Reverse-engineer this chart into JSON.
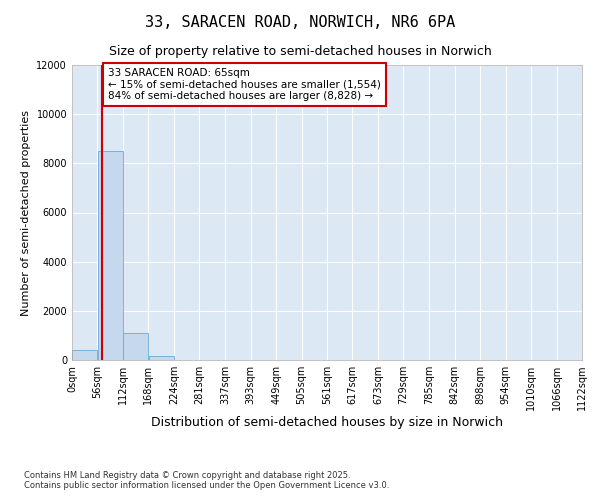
{
  "title": "33, SARACEN ROAD, NORWICH, NR6 6PA",
  "subtitle": "Size of property relative to semi-detached houses in Norwich",
  "xlabel": "Distribution of semi-detached houses by size in Norwich",
  "ylabel": "Number of semi-detached properties",
  "property_size": 65,
  "bin_width": 56,
  "bin_starts": [
    0,
    56,
    112,
    168,
    224,
    280,
    337,
    393,
    449,
    505,
    561,
    617,
    673,
    729,
    785,
    842,
    898,
    954,
    1010,
    1066
  ],
  "bin_labels": [
    "0sqm",
    "56sqm",
    "112sqm",
    "168sqm",
    "224sqm",
    "281sqm",
    "337sqm",
    "393sqm",
    "449sqm",
    "505sqm",
    "561sqm",
    "617sqm",
    "673sqm",
    "729sqm",
    "785sqm",
    "842sqm",
    "898sqm",
    "954sqm",
    "1010sqm",
    "1066sqm",
    "1122sqm"
  ],
  "bar_heights": [
    400,
    8500,
    1100,
    150,
    20,
    8,
    4,
    2,
    1,
    1,
    0,
    0,
    0,
    0,
    0,
    0,
    0,
    0,
    0,
    0
  ],
  "bar_color": "#c5d8ee",
  "bar_edge_color": "#6aaad4",
  "vline_color": "#cc0000",
  "vline_x": 65,
  "annotation_text": "33 SARACEN ROAD: 65sqm\n← 15% of semi-detached houses are smaller (1,554)\n84% of semi-detached houses are larger (8,828) →",
  "annotation_box_color": "#cc0000",
  "ylim": [
    0,
    12000
  ],
  "yticks": [
    0,
    2000,
    4000,
    6000,
    8000,
    10000,
    12000
  ],
  "background_color": "#ffffff",
  "plot_bg_color": "#dde8f5",
  "grid_color": "#ffffff",
  "footer_text": "Contains HM Land Registry data © Crown copyright and database right 2025.\nContains public sector information licensed under the Open Government Licence v3.0.",
  "title_fontsize": 11,
  "subtitle_fontsize": 9,
  "xlabel_fontsize": 9,
  "ylabel_fontsize": 8,
  "annotation_fontsize": 7.5,
  "tick_fontsize": 7
}
